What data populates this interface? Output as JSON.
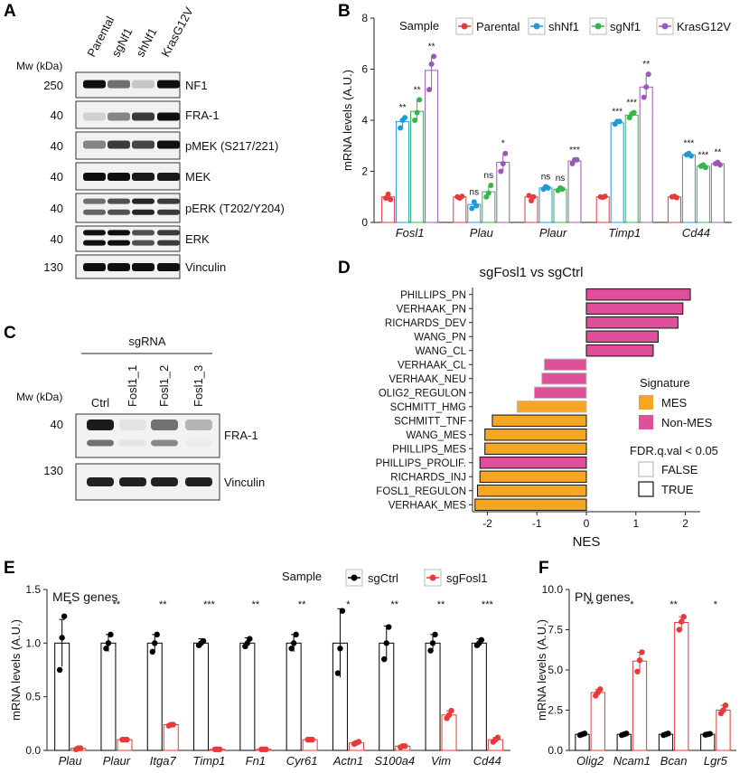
{
  "panels": {
    "A": "A",
    "B": "B",
    "C": "C",
    "D": "D",
    "E": "E",
    "F": "F"
  },
  "panelA": {
    "mw_label": "Mw (kDa)",
    "lanes": [
      "Parental",
      "sgNf1",
      "shNf1",
      "KrasG12V"
    ],
    "blots": [
      {
        "mw": "250",
        "label": "NF1"
      },
      {
        "mw": "40",
        "label": "FRA-1"
      },
      {
        "mw": "40",
        "label": "pMEK (S217/221)"
      },
      {
        "mw": "40",
        "label": "MEK"
      },
      {
        "mw": "40",
        "label": "pERK (T202/Y204)"
      },
      {
        "mw": "40",
        "label": "ERK"
      },
      {
        "mw": "130",
        "label": "Vinculin"
      }
    ]
  },
  "panelC": {
    "group_label": "sgRNA",
    "mw_label": "Mw (kDa)",
    "lanes": [
      "Ctrl",
      "Fosl1_1",
      "Fosl1_2",
      "Fosl1_3"
    ],
    "blots": [
      {
        "mw": "40",
        "label": "FRA-1"
      },
      {
        "mw": "130",
        "label": "Vinculin"
      }
    ]
  },
  "chart_data": [
    {
      "panel": "B",
      "type": "bar",
      "ylabel": "mRNA levels (A.U.)",
      "ylim": [
        0,
        8
      ],
      "yticks": [
        "0",
        "2",
        "4",
        "6",
        "8"
      ],
      "legend_title": "Sample",
      "categories": [
        "Fosl1",
        "Plau",
        "Plaur",
        "Timp1",
        "Cd44"
      ],
      "series": [
        {
          "name": "Parental",
          "color": "#e8393b",
          "values": [
            1.0,
            1.0,
            1.0,
            1.0,
            1.0
          ],
          "points": [
            [
              0.95,
              1.1,
              0.9
            ],
            [
              1.0,
              0.95,
              1.02
            ],
            [
              1.05,
              0.85,
              1.0
            ],
            [
              1.0,
              0.98,
              1.02
            ],
            [
              1.0,
              1.02,
              0.97
            ]
          ]
        },
        {
          "name": "shNf1",
          "color": "#1f9ad6",
          "values": [
            3.95,
            0.7,
            1.35,
            3.9,
            2.65
          ],
          "points": [
            [
              3.7,
              4.0,
              4.1
            ],
            [
              0.55,
              0.8,
              0.65
            ],
            [
              1.3,
              1.4,
              1.35
            ],
            [
              3.85,
              3.95,
              3.95
            ],
            [
              2.65,
              2.7,
              2.6
            ]
          ]
        },
        {
          "name": "sgNf1",
          "color": "#36b54a",
          "values": [
            4.35,
            1.2,
            1.3,
            4.2,
            2.2
          ],
          "points": [
            [
              4.0,
              4.3,
              4.8
            ],
            [
              1.0,
              1.15,
              1.45
            ],
            [
              1.25,
              1.35,
              1.3
            ],
            [
              4.1,
              4.25,
              4.3
            ],
            [
              2.2,
              2.25,
              2.15
            ]
          ]
        },
        {
          "name": "KrasG12V",
          "color": "#9b59b6",
          "values": [
            5.95,
            2.35,
            2.4,
            5.3,
            2.3
          ],
          "points": [
            [
              5.2,
              6.2,
              6.5
            ],
            [
              2.0,
              2.3,
              2.7
            ],
            [
              2.3,
              2.45,
              2.45
            ],
            [
              4.9,
              5.3,
              5.8
            ],
            [
              2.3,
              2.35,
              2.25
            ]
          ]
        }
      ],
      "significance": [
        [
          "",
          "**",
          "**",
          "**"
        ],
        [
          "",
          "ns",
          "ns",
          "*"
        ],
        [
          "",
          "ns",
          "ns",
          "***"
        ],
        [
          "",
          "***",
          "***",
          "**"
        ],
        [
          "",
          "***",
          "***",
          "**"
        ]
      ]
    },
    {
      "panel": "D",
      "type": "bar",
      "title": "sgFosl1 vs sgCtrl",
      "xlabel": "NES",
      "xlim": [
        -2.3,
        2.3
      ],
      "xticks": [
        "-2",
        "-1",
        "0",
        "1",
        "2"
      ],
      "categories": [
        "PHILLIPS_PN",
        "VERHAAK_PN",
        "RICHARDS_DEV",
        "WANG_PN",
        "WANG_CL",
        "VERHAAK_CL",
        "VERHAAK_NEU",
        "OLIG2_REGULON",
        "SCHMITT_HMG",
        "SCHMITT_TNF",
        "WANG_MES",
        "PHILLIPS_MES",
        "PHILLIPS_PROLIF.",
        "RICHARDS_INJ",
        "FOSL1_REGULON",
        "VERHAAK_MES"
      ],
      "values": [
        2.1,
        1.95,
        1.85,
        1.45,
        1.35,
        -0.85,
        -0.9,
        -1.05,
        -1.4,
        -1.9,
        -2.05,
        -2.05,
        -2.15,
        -2.15,
        -2.2,
        -2.25
      ],
      "signature": [
        "Non-MES",
        "Non-MES",
        "Non-MES",
        "Non-MES",
        "Non-MES",
        "Non-MES",
        "Non-MES",
        "Non-MES",
        "MES",
        "MES",
        "MES",
        "MES",
        "Non-MES",
        "MES",
        "MES",
        "MES"
      ],
      "fdr_true": [
        true,
        true,
        true,
        true,
        true,
        false,
        false,
        false,
        false,
        true,
        true,
        true,
        true,
        true,
        true,
        true
      ],
      "legend": {
        "signature_title": "Signature",
        "signature_items": [
          {
            "name": "MES",
            "color": "#f5a623"
          },
          {
            "name": "Non-MES",
            "color": "#e0509a"
          }
        ],
        "fdr_title": "FDR.q.val < 0.05",
        "fdr_items": [
          "FALSE",
          "TRUE"
        ]
      }
    },
    {
      "panel": "E",
      "type": "bar",
      "title": "MES genes",
      "ylabel": "mRNA levels (A.U.)",
      "ylim": [
        0,
        1.5
      ],
      "yticks": [
        "0.0",
        "0.5",
        "1.0",
        "1.5"
      ],
      "legend_title": "Sample",
      "categories": [
        "Plau",
        "Plaur",
        "Itga7",
        "Timp1",
        "Fn1",
        "Cyr61",
        "Actn1",
        "S100a4",
        "Vim",
        "Cd44"
      ],
      "series": [
        {
          "name": "sgCtrl",
          "color": "#000000",
          "values": [
            1,
            1,
            1,
            1,
            1,
            1,
            1,
            1,
            1,
            1
          ],
          "errors": [
            0.22,
            0.08,
            0.08,
            0.04,
            0.05,
            0.08,
            0.32,
            0.16,
            0.08,
            0.04
          ],
          "points": [
            [
              0.75,
              1.05,
              1.25
            ],
            [
              0.95,
              1.0,
              1.08
            ],
            [
              0.92,
              1.0,
              1.08
            ],
            [
              0.98,
              1.0,
              1.02
            ],
            [
              0.97,
              1.0,
              1.04
            ],
            [
              0.95,
              1.0,
              1.08
            ],
            [
              0.72,
              0.95,
              1.3
            ],
            [
              0.85,
              1.0,
              1.15
            ],
            [
              0.93,
              1.0,
              1.08
            ],
            [
              0.98,
              1.0,
              1.03
            ]
          ]
        },
        {
          "name": "sgFosl1",
          "color": "#e8393b",
          "values": [
            0.02,
            0.1,
            0.24,
            0.01,
            0.01,
            0.1,
            0.07,
            0.04,
            0.33,
            0.1
          ],
          "errors": [
            0.01,
            0.01,
            0.01,
            0.005,
            0.005,
            0.01,
            0.02,
            0.01,
            0.04,
            0.02
          ],
          "points": [
            [
              0.01,
              0.02,
              0.02
            ],
            [
              0.1,
              0.1,
              0.1
            ],
            [
              0.23,
              0.24,
              0.24
            ],
            [
              0.01,
              0.01,
              0.01
            ],
            [
              0.01,
              0.01,
              0.01
            ],
            [
              0.1,
              0.1,
              0.1
            ],
            [
              0.06,
              0.07,
              0.08
            ],
            [
              0.03,
              0.04,
              0.04
            ],
            [
              0.3,
              0.33,
              0.37
            ],
            [
              0.08,
              0.1,
              0.12
            ]
          ]
        }
      ],
      "significance": [
        "*",
        "**",
        "**",
        "***",
        "**",
        "**",
        "*",
        "**",
        "**",
        "***"
      ]
    },
    {
      "panel": "F",
      "type": "bar",
      "title": "PN genes",
      "ylabel": "mRNA levels (A.U.)",
      "ylim": [
        0,
        10
      ],
      "yticks": [
        "0.0",
        "2.5",
        "5.0",
        "7.5",
        "10.0"
      ],
      "categories": [
        "Olig2",
        "Ncam1",
        "Bcan",
        "Lgr5"
      ],
      "series": [
        {
          "name": "sgCtrl",
          "color": "#000000",
          "values": [
            1,
            1,
            1,
            1
          ],
          "points": [
            [
              0.95,
              1.0,
              1.05
            ],
            [
              0.95,
              1.0,
              1.05
            ],
            [
              0.95,
              1.0,
              1.05
            ],
            [
              0.97,
              1.0,
              1.03
            ]
          ]
        },
        {
          "name": "sgFosl1",
          "color": "#e8393b",
          "values": [
            3.6,
            5.55,
            7.95,
            2.5
          ],
          "points": [
            [
              3.4,
              3.6,
              3.8
            ],
            [
              4.9,
              5.6,
              6.1
            ],
            [
              7.5,
              8.0,
              8.3
            ],
            [
              2.3,
              2.5,
              2.8
            ]
          ]
        }
      ],
      "significance": [
        "**",
        "*",
        "**",
        "*"
      ]
    }
  ]
}
